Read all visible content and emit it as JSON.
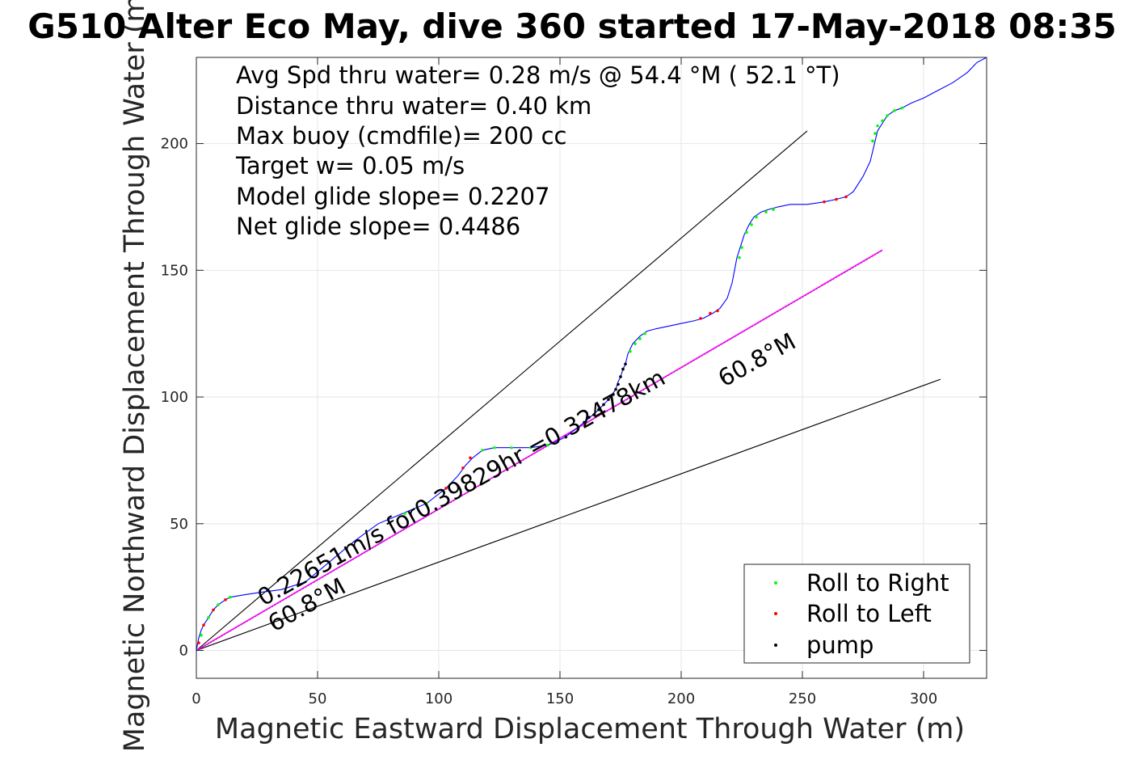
{
  "chart_data": {
    "type": "line",
    "title": "G510 Alter Eco May, dive 360 started 17-May-2018 08:35",
    "xlabel": "Magnetic Eastward Displacement Through Water (m)",
    "ylabel": "Magnetic Northward Displacement Through Water (m)",
    "xlim": [
      0,
      326
    ],
    "ylim": [
      -11,
      234
    ],
    "xticks": [
      "0",
      "50",
      "100",
      "150",
      "200",
      "250",
      "300"
    ],
    "yticks": [
      "0",
      "50",
      "100",
      "150",
      "200"
    ],
    "xtick_values": [
      0,
      50,
      100,
      150,
      200,
      250,
      300
    ],
    "ytick_values": [
      0,
      50,
      100,
      150,
      200
    ],
    "grid": true,
    "info_lines": [
      "Avg Spd thru water=  0.28 m/s @  54.4 °M ( 52.1 °T)",
      "Distance thru water=  0.40 km",
      "Max buoy (cmdfile)= 200 cc",
      "Target w= 0.05 m/s",
      "Model glide slope= 0.2207",
      "Net glide slope= 0.4486"
    ],
    "annotations": {
      "current_text": "0.22651m/s for0.39829hr =0.32478km",
      "heading_upper": "60.8°M",
      "heading_lower": "60.8°M"
    },
    "track": {
      "x": [
        0,
        1,
        2,
        3,
        5,
        7,
        9,
        12,
        14,
        20,
        27,
        35,
        45,
        55,
        65,
        75,
        85,
        95,
        103,
        108,
        111,
        114,
        118,
        123,
        130,
        138,
        145,
        152,
        160,
        166,
        170,
        173,
        174,
        175,
        176,
        177,
        178,
        180,
        183,
        186,
        190,
        195,
        200,
        205,
        209,
        213,
        216,
        219,
        221,
        223,
        225,
        226,
        228,
        230,
        233,
        236,
        240,
        245,
        252,
        259,
        264,
        268,
        271,
        275,
        278,
        280,
        281,
        283,
        285,
        288,
        291,
        295,
        300,
        306,
        312,
        318,
        322,
        326
      ],
      "y": [
        0,
        5,
        8,
        10,
        13,
        16,
        18,
        20,
        21,
        22,
        23,
        24,
        27,
        35,
        43,
        50,
        54,
        58,
        64,
        69,
        73,
        76,
        79,
        80,
        80,
        80,
        81,
        84,
        90,
        95,
        99,
        103,
        106,
        108,
        111,
        113,
        117,
        121,
        124,
        126,
        127,
        128,
        129,
        130,
        131,
        133,
        135,
        139,
        145,
        155,
        161,
        164,
        168,
        171,
        173,
        174,
        175,
        176,
        176,
        177,
        178,
        179,
        181,
        187,
        193,
        201,
        205,
        208,
        211,
        213,
        214,
        216,
        218,
        221,
        224,
        228,
        232,
        234
      ]
    },
    "current_line": {
      "x": [
        0,
        283
      ],
      "y": [
        0,
        158
      ]
    },
    "envelope_lines": [
      {
        "x": [
          0,
          252
        ],
        "y": [
          0,
          205
        ]
      },
      {
        "x": [
          0,
          307
        ],
        "y": [
          0,
          107
        ]
      }
    ],
    "markers": {
      "roll_right": {
        "color": "#00ff00",
        "x": [
          2,
          5,
          9,
          14,
          86,
          95,
          118,
          123,
          130,
          138,
          145,
          179,
          181,
          183,
          185,
          224,
          225,
          227,
          229,
          231,
          235,
          238,
          279,
          280,
          281,
          283,
          285,
          288,
          291
        ],
        "y": [
          6,
          13,
          18,
          21,
          54,
          58,
          79,
          80,
          80,
          80,
          81,
          118,
          121,
          123,
          125,
          155,
          159,
          165,
          168,
          171,
          173,
          174,
          201,
          204,
          207,
          209,
          211,
          213,
          214
        ]
      },
      "roll_left": {
        "color": "#ff0000",
        "x": [
          1,
          3,
          7,
          12,
          103,
          110,
          113,
          208,
          212,
          215,
          259,
          264,
          268
        ],
        "y": [
          3,
          10,
          16,
          20,
          64,
          72,
          76,
          131,
          133,
          134,
          177,
          178,
          179
        ]
      },
      "pump": {
        "color": "#000000",
        "x": [
          160,
          162,
          164,
          166,
          168,
          170,
          171,
          172,
          173,
          174,
          175,
          176,
          177
        ],
        "y": [
          90,
          92,
          93,
          95,
          97,
          99,
          100,
          101,
          103,
          105,
          108,
          111,
          113
        ]
      }
    },
    "legend": {
      "position": "bottom-right",
      "entries": [
        {
          "label": "Roll to Right",
          "color": "#00ff00"
        },
        {
          "label": "Roll to Left",
          "color": "#ff0000"
        },
        {
          "label": "pump",
          "color": "#000000"
        }
      ]
    },
    "colors": {
      "track": "#0000ff",
      "current_line": "#ff00ff",
      "envelope": "#000000",
      "grid": "#e6e6e6",
      "axes": "#262626"
    }
  }
}
